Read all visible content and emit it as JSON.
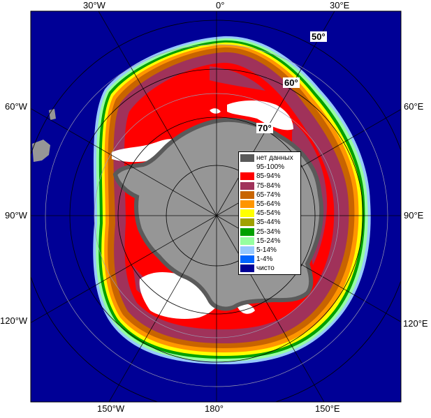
{
  "map": {
    "longitude_labels": {
      "top_30w": "30°W",
      "top_0": "0°",
      "top_30e": "30°E",
      "left_60w": "60°W",
      "left_90w": "90°W",
      "left_120w": "120°W",
      "right_60e": "60°E",
      "right_90e": "90°E",
      "right_120e": "120°E",
      "bottom_150w": "150°W",
      "bottom_180": "180°",
      "bottom_150e": "150°E"
    },
    "latitude_labels": {
      "lat50": "50°",
      "lat60": "60°",
      "lat70": "70°"
    }
  },
  "legend": {
    "items": [
      {
        "label": "нет данных",
        "color": "#5a5a5a"
      },
      {
        "label": "95-100%",
        "color": "#ffffff"
      },
      {
        "label": "85-94%",
        "color": "#ff0000"
      },
      {
        "label": "75-84%",
        "color": "#a0325a"
      },
      {
        "label": "65-74%",
        "color": "#c86400"
      },
      {
        "label": "55-64%",
        "color": "#ff9600"
      },
      {
        "label": "45-54%",
        "color": "#ffff00"
      },
      {
        "label": "35-44%",
        "color": "#a0a000"
      },
      {
        "label": "25-34%",
        "color": "#00a000"
      },
      {
        "label": "15-24%",
        "color": "#96ffa0"
      },
      {
        "label": "5-14%",
        "color": "#96c8ff"
      },
      {
        "label": "1-4%",
        "color": "#0064ff"
      },
      {
        "label": "чисто",
        "color": "#000096"
      }
    ]
  },
  "colors": {
    "ocean": "#000096",
    "land": "#969696",
    "no_data": "#5a5a5a",
    "grid": "#000000"
  }
}
